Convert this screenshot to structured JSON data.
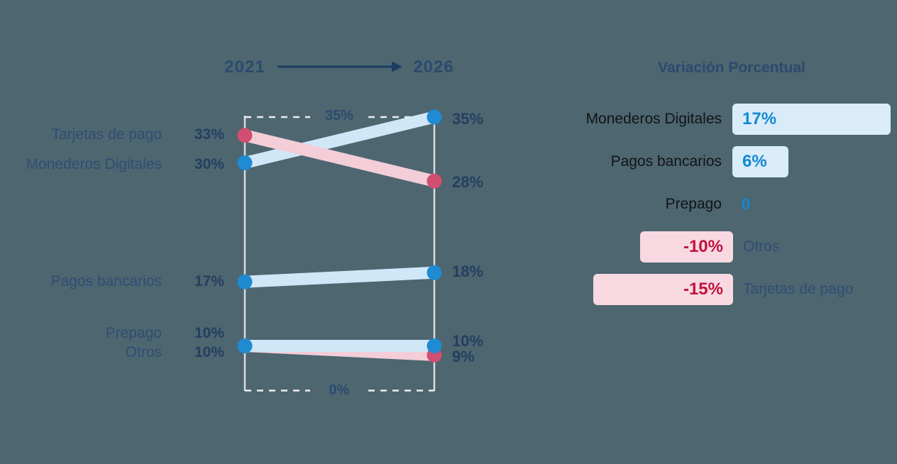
{
  "background": "#4d6670",
  "colors": {
    "navy_text": "#2c4a6e",
    "black_label": "#121416",
    "blue_band": "#cfe7f7",
    "pink_band": "#f3cdd8",
    "blue_dot": "#1e8bd3",
    "pink_dot": "#d24e70",
    "blue_value": "#1389d3",
    "crimson_value": "#c2123f",
    "blue_bar_bg": "#daecfa",
    "pink_bar_bg": "#f8d9e2",
    "axis_line": "#dcdcdc",
    "dashed_line": "#ededed",
    "arrow": "#1c3d61"
  },
  "chart_data": {
    "type": "slope",
    "x": [
      "2021",
      "2026"
    ],
    "ylim": [
      0,
      35
    ],
    "grid": "dashed reference lines at 35% and 0%",
    "series": [
      {
        "name": "Tarjetas de pago",
        "palette": "pink",
        "values": [
          33,
          28
        ],
        "value_labels": [
          "33%",
          "28%"
        ]
      },
      {
        "name": "Monederos Digitales",
        "palette": "blue",
        "values": [
          30,
          35
        ],
        "value_labels": [
          "30%",
          "35%"
        ]
      },
      {
        "name": "Pagos bancarios",
        "palette": "blue",
        "values": [
          17,
          18
        ],
        "value_labels": [
          "17%",
          "18%"
        ]
      },
      {
        "name": "Prepago",
        "palette": "blue",
        "values": [
          10,
          10
        ],
        "value_labels": [
          "10%",
          "10%"
        ]
      },
      {
        "name": "Otros",
        "palette": "pink",
        "values": [
          10,
          9
        ],
        "value_labels": [
          "10%",
          "9%"
        ]
      }
    ],
    "reference_lines": [
      {
        "value": 35,
        "label": "35%"
      },
      {
        "value": 0,
        "label": "0%"
      }
    ]
  },
  "variation_panel": {
    "title": "Variación Porcentual",
    "rows": [
      {
        "label": "Monederos Digitales",
        "value": "17%",
        "delta": 17
      },
      {
        "label": "Pagos bancarios",
        "value": "6%",
        "delta": 6
      },
      {
        "label": "Prepago",
        "value": "0",
        "delta": 0
      },
      {
        "label": "Otros",
        "value": "-10%",
        "delta": -10
      },
      {
        "label": "Tarjetas de pago",
        "value": "-15%",
        "delta": -15
      }
    ]
  }
}
